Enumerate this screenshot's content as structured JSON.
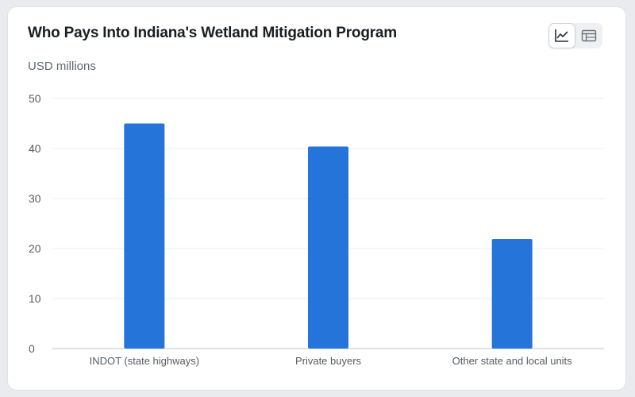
{
  "header": {
    "title": "Who Pays Into Indiana's Wetland Mitigation Program",
    "unit_label": "USD millions"
  },
  "view_toggle": {
    "chart_view_icon": "line-chart-icon",
    "table_view_icon": "table-icon",
    "active": "chart"
  },
  "colors": {
    "bar": "#2574d9",
    "grid": "#ebedf0",
    "axis": "#c9cdd2"
  },
  "chart_data": {
    "type": "bar",
    "title": "Who Pays Into Indiana's Wetland Mitigation Program",
    "ylabel": "USD millions",
    "xlabel": "",
    "categories": [
      "INDOT (state highways)",
      "Private buyers",
      "Other state and local units"
    ],
    "values": [
      45,
      40.4,
      21.9
    ],
    "ylim": [
      0,
      50
    ],
    "yticks": [
      0,
      10,
      20,
      30,
      40,
      50
    ],
    "grid": true,
    "legend": "none"
  }
}
